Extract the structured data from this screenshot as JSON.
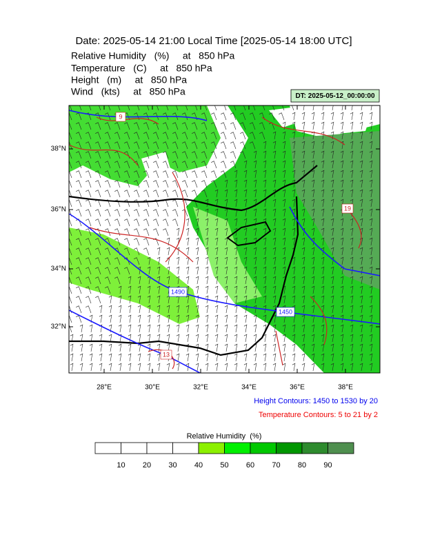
{
  "header": {
    "title": "Date: 2025-05-14  21:00 Local Time [2025-05-14  18:00 UTC]",
    "fields": [
      "Relative Humidity   (%)     at   850 hPa",
      "Temperature   (C)     at   850 hPa",
      "Height   (m)     at   850 hPa",
      "Wind   (kts)     at   850 hPa"
    ],
    "dt": "DT: 2025-05-12_00:00:00"
  },
  "map": {
    "lat_labels": [
      "38°N",
      "36°N",
      "34°N",
      "32°N"
    ],
    "lon_labels": [
      "28°E",
      "30°E",
      "32°E",
      "34°E",
      "36°E",
      "38°E"
    ],
    "contour_labels": [
      "9",
      "19",
      "1490",
      "1450",
      "13"
    ]
  },
  "legend": {
    "height_contours": "Height Contours: 1450 to 1530 by 20",
    "temperature_contours": "Temperature Contours: 5 to 21 by 2"
  },
  "colorbar": {
    "title": "Relative Humidity  (%)",
    "ticks": [
      10,
      20,
      30,
      40,
      50,
      60,
      70,
      80,
      90
    ]
  }
}
